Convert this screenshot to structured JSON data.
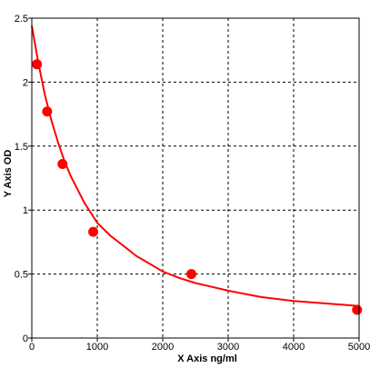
{
  "chart_data": {
    "type": "scatter",
    "title": "",
    "xlabel": "X Axis ng/ml",
    "ylabel": "Y Axis OD",
    "xlim": [
      0,
      5000
    ],
    "ylim": [
      0,
      2.5
    ],
    "x_ticks": [
      0,
      1000,
      2000,
      3000,
      4000,
      5000
    ],
    "x_tick_labels": [
      "0",
      "1000",
      "2000",
      "3000",
      "4000",
      "5000"
    ],
    "y_ticks": [
      0,
      0.5,
      1,
      1.5,
      2,
      2.5
    ],
    "y_tick_labels": [
      "0",
      "0.5",
      "1",
      "1.5",
      "2",
      "2.5"
    ],
    "grid": true,
    "grid_style": "dashed",
    "series": [
      {
        "color": "#ff0000",
        "points": [
          {
            "x": 78,
            "y": 2.14
          },
          {
            "x": 234,
            "y": 1.77
          },
          {
            "x": 469,
            "y": 1.36
          },
          {
            "x": 938,
            "y": 0.83
          },
          {
            "x": 2438,
            "y": 0.5
          },
          {
            "x": 4969,
            "y": 0.22
          }
        ],
        "fit_curve": {
          "x": [
            0,
            100,
            200,
            300,
            400,
            500,
            600,
            700,
            800,
            900,
            1000,
            1200,
            1400,
            1600,
            1800,
            2000,
            2250,
            2500,
            2750,
            3000,
            3500,
            4000,
            4500,
            5000
          ],
          "y": [
            2.44,
            2.15,
            1.9,
            1.7,
            1.53,
            1.38,
            1.26,
            1.16,
            1.06,
            0.98,
            0.9,
            0.8,
            0.72,
            0.64,
            0.58,
            0.52,
            0.47,
            0.43,
            0.4,
            0.37,
            0.32,
            0.29,
            0.27,
            0.25
          ]
        }
      }
    ],
    "background_color": "#ffffff",
    "axis_color": "#000000",
    "grid_color": "#000000"
  }
}
